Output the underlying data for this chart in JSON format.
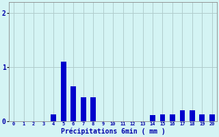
{
  "categories": [
    0,
    1,
    2,
    3,
    4,
    5,
    6,
    7,
    8,
    9,
    10,
    11,
    12,
    13,
    14,
    15,
    16,
    17,
    18,
    19,
    20
  ],
  "values": [
    0,
    0,
    0,
    0,
    0.13,
    1.1,
    0.65,
    0.45,
    0.45,
    0,
    0,
    0,
    0,
    0,
    0.12,
    0.13,
    0.13,
    0.2,
    0.2,
    0.13,
    0.13
  ],
  "bar_color": "#0000cc",
  "bg_color": "#d4f4f4",
  "grid_color": "#b0cccc",
  "axis_color": "#888888",
  "text_color": "#0000aa",
  "xlabel": "Précipitations 6min ( mm )",
  "ylim": [
    0,
    2.2
  ],
  "yticks": [
    0,
    1,
    2
  ],
  "xlim": [
    -0.5,
    20.5
  ],
  "bar_width": 0.55
}
